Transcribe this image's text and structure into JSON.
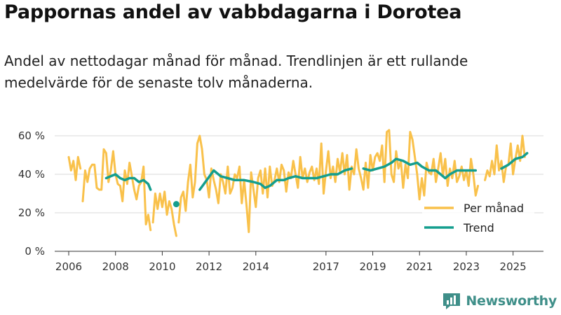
{
  "header": {
    "title": "Pappornas andel av vabbdagarna i Dorotea",
    "subtitle": "Andel av nettodagar månad för månad. Trendlinjen är ett rullande medelvärde för de senaste tolv månaderna."
  },
  "brand": {
    "name": "Newsworthy",
    "color": "#3f8f89"
  },
  "chart_data": {
    "type": "line",
    "title": "Pappornas andel av vabbdagarna i Dorotea",
    "xlabel": "",
    "ylabel": "",
    "xlim": [
      2005.4,
      2026.3
    ],
    "ylim": [
      0,
      60
    ],
    "y_ticks": [
      0,
      20,
      40,
      60
    ],
    "y_tick_labels": [
      "0 %",
      "20 %",
      "40 %",
      "60 %"
    ],
    "x_ticks": [
      2006,
      2008,
      2010,
      2012,
      2014,
      2017,
      2019,
      2021,
      2023,
      2025
    ],
    "x_tick_labels": [
      "2006",
      "2008",
      "2010",
      "2012",
      "2014",
      "2017",
      "2019",
      "2021",
      "2023",
      "2025"
    ],
    "grid": true,
    "legend_position": "bottom-right",
    "series": [
      {
        "name": "Per månad",
        "color": "#f9c14b",
        "segments": [
          [
            [
              2006.0,
              49
            ],
            [
              2006.1,
              42
            ],
            [
              2006.2,
              47
            ],
            [
              2006.3,
              37
            ],
            [
              2006.4,
              49
            ],
            [
              2006.5,
              43
            ]
          ],
          [
            [
              2006.6,
              26
            ],
            [
              2006.7,
              42
            ],
            [
              2006.8,
              36
            ],
            [
              2006.9,
              43
            ],
            [
              2007.0,
              45
            ],
            [
              2007.1,
              45
            ],
            [
              2007.2,
              33
            ],
            [
              2007.3,
              32
            ],
            [
              2007.4,
              32
            ],
            [
              2007.5,
              53
            ],
            [
              2007.6,
              51
            ],
            [
              2007.7,
              36
            ],
            [
              2007.8,
              42
            ],
            [
              2007.9,
              52
            ],
            [
              2008.0,
              40
            ],
            [
              2008.1,
              35
            ],
            [
              2008.2,
              34
            ],
            [
              2008.3,
              26
            ],
            [
              2008.4,
              42
            ],
            [
              2008.5,
              35
            ],
            [
              2008.6,
              46
            ],
            [
              2008.7,
              39
            ],
            [
              2008.8,
              32
            ],
            [
              2008.9,
              27
            ],
            [
              2009.0,
              34
            ],
            [
              2009.1,
              36
            ],
            [
              2009.2,
              44
            ],
            [
              2009.3,
              14
            ],
            [
              2009.4,
              19
            ],
            [
              2009.5,
              11
            ]
          ],
          [
            [
              2009.6,
              15
            ],
            [
              2009.7,
              30
            ],
            [
              2009.8,
              22
            ],
            [
              2009.9,
              30
            ],
            [
              2010.0,
              23
            ],
            [
              2010.1,
              31
            ],
            [
              2010.2,
              19
            ],
            [
              2010.3,
              26
            ],
            [
              2010.4,
              22
            ],
            [
              2010.5,
              14
            ],
            [
              2010.6,
              8
            ]
          ],
          [
            [
              2010.7,
              15
            ],
            [
              2010.8,
              28
            ],
            [
              2010.9,
              31
            ],
            [
              2011.0,
              21
            ],
            [
              2011.1,
              36
            ],
            [
              2011.2,
              45
            ],
            [
              2011.3,
              28
            ],
            [
              2011.4,
              36
            ],
            [
              2011.5,
              56
            ],
            [
              2011.6,
              60
            ],
            [
              2011.7,
              53
            ],
            [
              2011.8,
              40
            ],
            [
              2011.9,
              37
            ],
            [
              2012.0,
              28
            ],
            [
              2012.1,
              43
            ],
            [
              2012.2,
              37
            ],
            [
              2012.3,
              32
            ],
            [
              2012.4,
              25
            ],
            [
              2012.5,
              40
            ],
            [
              2012.6,
              36
            ],
            [
              2012.7,
              30
            ],
            [
              2012.8,
              44
            ],
            [
              2012.9,
              30
            ],
            [
              2013.0,
              33
            ],
            [
              2013.1,
              40
            ],
            [
              2013.2,
              38
            ],
            [
              2013.3,
              44
            ],
            [
              2013.4,
              25
            ],
            [
              2013.5,
              37
            ],
            [
              2013.6,
              24
            ],
            [
              2013.7,
              10
            ],
            [
              2013.8,
              41
            ],
            [
              2013.9,
              32
            ],
            [
              2014.0,
              23
            ],
            [
              2014.1,
              38
            ],
            [
              2014.2,
              42
            ],
            [
              2014.3,
              30
            ],
            [
              2014.4,
              43
            ],
            [
              2014.5,
              28
            ],
            [
              2014.6,
              44
            ],
            [
              2014.7,
              34
            ],
            [
              2014.8,
              37
            ],
            [
              2014.9,
              43
            ],
            [
              2015.0,
              36
            ],
            [
              2015.1,
              45
            ],
            [
              2015.2,
              42
            ],
            [
              2015.3,
              31
            ],
            [
              2015.4,
              41
            ],
            [
              2015.5,
              38
            ],
            [
              2015.6,
              47
            ],
            [
              2015.7,
              40
            ],
            [
              2015.8,
              33
            ],
            [
              2015.9,
              49
            ],
            [
              2016.0,
              38
            ],
            [
              2016.1,
              43
            ],
            [
              2016.2,
              36
            ],
            [
              2016.3,
              41
            ],
            [
              2016.4,
              44
            ],
            [
              2016.5,
              37
            ],
            [
              2016.6,
              43
            ],
            [
              2016.7,
              35
            ],
            [
              2016.8,
              56
            ],
            [
              2016.9,
              30
            ],
            [
              2017.0,
              42
            ],
            [
              2017.1,
              52
            ],
            [
              2017.2,
              38
            ],
            [
              2017.3,
              44
            ],
            [
              2017.4,
              36
            ],
            [
              2017.5,
              48
            ],
            [
              2017.6,
              41
            ],
            [
              2017.7,
              51
            ],
            [
              2017.8,
              40
            ],
            [
              2017.9,
              50
            ],
            [
              2018.0,
              32
            ],
            [
              2018.1,
              44
            ],
            [
              2018.2,
              40
            ],
            [
              2018.3,
              53
            ],
            [
              2018.4,
              43
            ],
            [
              2018.5,
              38
            ],
            [
              2018.6,
              32
            ],
            [
              2018.7,
              46
            ],
            [
              2018.8,
              33
            ],
            [
              2018.9,
              50
            ],
            [
              2019.0,
              42
            ],
            [
              2019.1,
              49
            ],
            [
              2019.2,
              51
            ],
            [
              2019.3,
              47
            ],
            [
              2019.4,
              55
            ],
            [
              2019.5,
              36
            ],
            [
              2019.6,
              62
            ],
            [
              2019.7,
              63
            ],
            [
              2019.8,
              40
            ],
            [
              2019.9,
              36
            ],
            [
              2020.0,
              52
            ],
            [
              2020.1,
              43
            ],
            [
              2020.2,
              47
            ],
            [
              2020.3,
              33
            ],
            [
              2020.4,
              45
            ],
            [
              2020.5,
              38
            ],
            [
              2020.6,
              62
            ],
            [
              2020.7,
              58
            ],
            [
              2020.8,
              49
            ],
            [
              2020.9,
              40
            ],
            [
              2021.0,
              27
            ],
            [
              2021.1,
              38
            ],
            [
              2021.2,
              29
            ],
            [
              2021.3,
              46
            ],
            [
              2021.4,
              41
            ],
            [
              2021.5,
              40
            ],
            [
              2021.6,
              48
            ],
            [
              2021.7,
              36
            ],
            [
              2021.8,
              43
            ],
            [
              2021.9,
              51
            ],
            [
              2022.0,
              39
            ],
            [
              2022.1,
              48
            ],
            [
              2022.2,
              34
            ],
            [
              2022.3,
              43
            ],
            [
              2022.4,
              38
            ],
            [
              2022.5,
              47
            ],
            [
              2022.6,
              36
            ],
            [
              2022.7,
              39
            ],
            [
              2022.8,
              44
            ],
            [
              2022.9,
              37
            ],
            [
              2023.0,
              42
            ],
            [
              2023.1,
              34
            ],
            [
              2023.2,
              48
            ],
            [
              2023.3,
              40
            ],
            [
              2023.4,
              29
            ],
            [
              2023.5,
              34
            ]
          ],
          [
            [
              2023.8,
              37
            ],
            [
              2023.9,
              42
            ],
            [
              2024.0,
              39
            ],
            [
              2024.1,
              47
            ],
            [
              2024.2,
              40
            ],
            [
              2024.3,
              55
            ],
            [
              2024.4,
              42
            ],
            [
              2024.5,
              47
            ],
            [
              2024.6,
              36
            ],
            [
              2024.7,
              44
            ],
            [
              2024.8,
              45
            ],
            [
              2024.9,
              56
            ],
            [
              2025.0,
              40
            ],
            [
              2025.1,
              48
            ],
            [
              2025.2,
              55
            ],
            [
              2025.3,
              47
            ],
            [
              2025.4,
              60
            ],
            [
              2025.5,
              49
            ]
          ]
        ]
      },
      {
        "name": "Trend",
        "color": "#149e8e",
        "segments": [
          [
            [
              2007.6,
              38
            ],
            [
              2007.8,
              39
            ],
            [
              2008.0,
              40
            ],
            [
              2008.2,
              38
            ],
            [
              2008.4,
              37
            ],
            [
              2008.6,
              38
            ],
            [
              2008.8,
              38
            ],
            [
              2009.0,
              36
            ],
            [
              2009.2,
              37
            ],
            [
              2009.4,
              35
            ],
            [
              2009.5,
              32
            ]
          ],
          [
            [
              2010.6,
              24.5
            ]
          ],
          [
            [
              2011.6,
              32
            ],
            [
              2011.9,
              37
            ],
            [
              2012.2,
              42
            ],
            [
              2012.5,
              39
            ],
            [
              2012.8,
              38
            ],
            [
              2013.1,
              37
            ],
            [
              2013.5,
              37
            ],
            [
              2013.9,
              36
            ],
            [
              2014.2,
              35
            ],
            [
              2014.4,
              33
            ],
            [
              2014.6,
              34
            ],
            [
              2014.9,
              37
            ],
            [
              2015.2,
              37
            ],
            [
              2015.4,
              38
            ],
            [
              2015.7,
              39
            ],
            [
              2016.0,
              38
            ],
            [
              2016.3,
              38
            ],
            [
              2016.6,
              38
            ],
            [
              2016.9,
              39
            ],
            [
              2017.2,
              40
            ],
            [
              2017.5,
              40
            ],
            [
              2017.8,
              42
            ],
            [
              2018.1,
              43
            ]
          ],
          [
            [
              2018.6,
              43
            ],
            [
              2018.9,
              42
            ],
            [
              2019.2,
              43
            ],
            [
              2019.5,
              44
            ],
            [
              2019.8,
              46
            ],
            [
              2020.0,
              48
            ],
            [
              2020.3,
              47
            ],
            [
              2020.6,
              45
            ],
            [
              2020.9,
              46
            ],
            [
              2021.1,
              44
            ],
            [
              2021.4,
              42
            ],
            [
              2021.7,
              42
            ],
            [
              2021.9,
              40
            ],
            [
              2022.1,
              38
            ],
            [
              2022.3,
              40
            ],
            [
              2022.6,
              42
            ],
            [
              2022.9,
              42
            ],
            [
              2023.2,
              42
            ],
            [
              2023.4,
              42
            ]
          ],
          [
            [
              2024.5,
              43
            ],
            [
              2024.8,
              45
            ],
            [
              2025.1,
              48
            ],
            [
              2025.4,
              49
            ],
            [
              2025.6,
              51
            ]
          ]
        ]
      }
    ]
  }
}
